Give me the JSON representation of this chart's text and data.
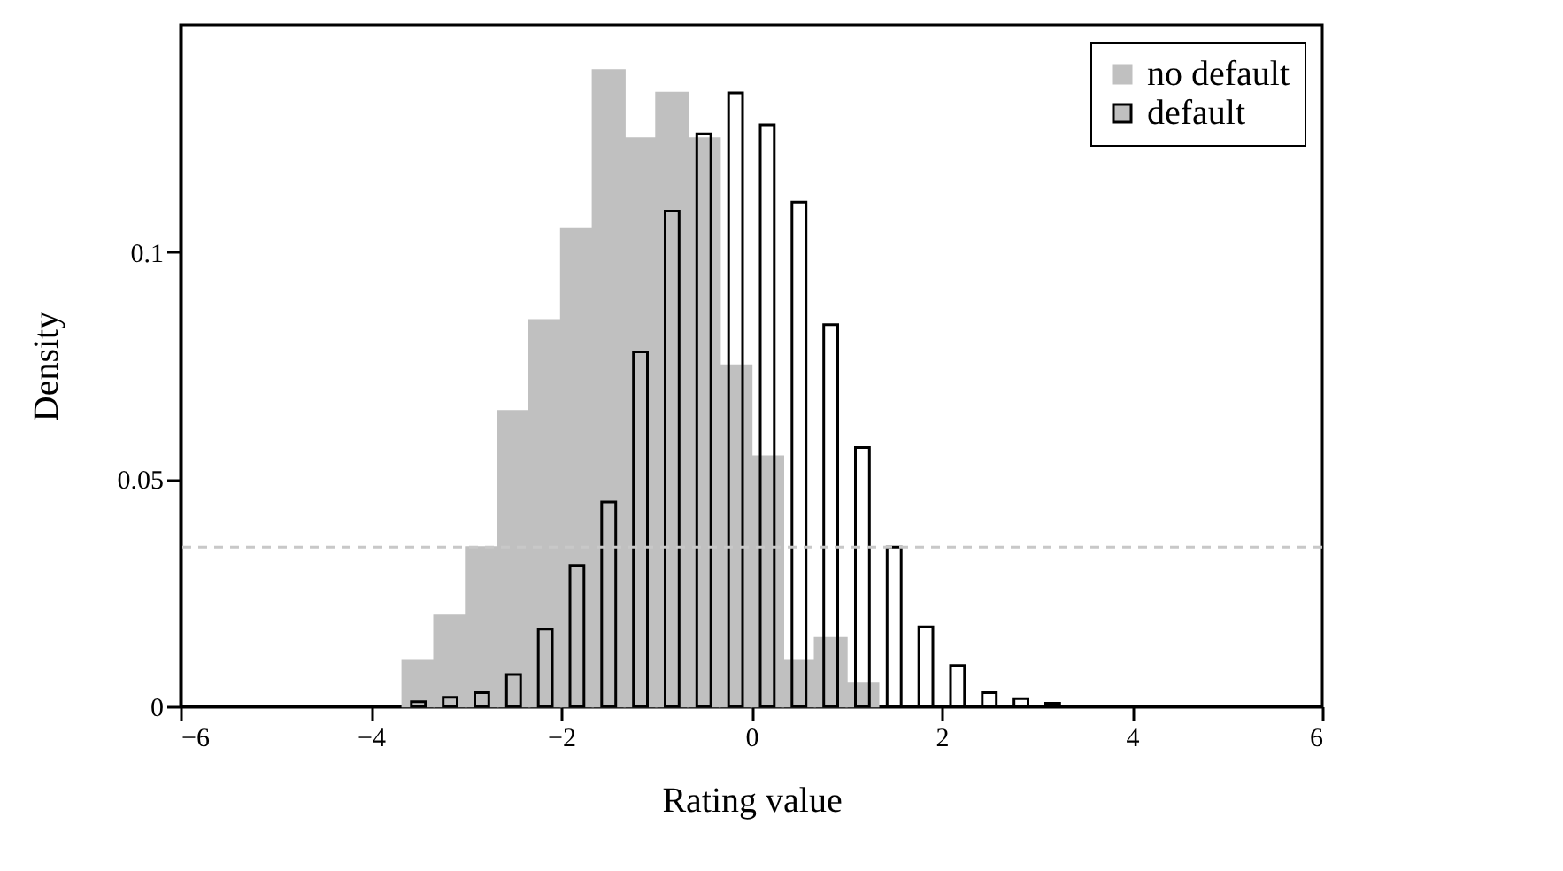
{
  "chart_data": {
    "type": "histogram",
    "xlabel": "Rating value",
    "ylabel": "Density",
    "bins": [
      -3.667,
      -3.333,
      -3,
      -2.667,
      -2.333,
      -2,
      -1.667,
      -1.333,
      -1,
      -0.667,
      -0.333,
      0,
      0.333,
      0.667,
      1,
      1.333,
      1.667,
      2,
      2.333,
      2.667,
      3,
      3.333
    ],
    "series": [
      {
        "name": "no default",
        "color": "#c0c0c0",
        "values": [
          0.01,
          0.02,
          0.035,
          0.065,
          0.085,
          0.105,
          0.14,
          0.125,
          0.135,
          0.125,
          0.075,
          0.055,
          0.01,
          0.015,
          0.005,
          null,
          null,
          null,
          null,
          null,
          null
        ]
      },
      {
        "name": "default",
        "color": "#000000",
        "values": [
          0.001,
          0.002,
          0.003,
          0.007,
          0.017,
          0.031,
          0.045,
          0.078,
          0.109,
          0.126,
          0.135,
          0.128,
          0.111,
          0.084,
          0.057,
          0.035,
          0.0175,
          0.009,
          0.003,
          0.0017,
          0.0007
        ]
      }
    ],
    "xlim": [
      -6,
      6
    ],
    "xticks": [
      -6,
      -4,
      -2,
      0,
      2,
      4,
      6
    ],
    "ylim": [
      0,
      0.15
    ],
    "yticks": [
      0,
      0.05,
      0.1
    ],
    "ref_lines": [
      {
        "axis": "y",
        "value": 0.035,
        "color": "#c8c8c8",
        "line_style": "dashed"
      }
    ],
    "grid": false,
    "legend": "top right"
  }
}
